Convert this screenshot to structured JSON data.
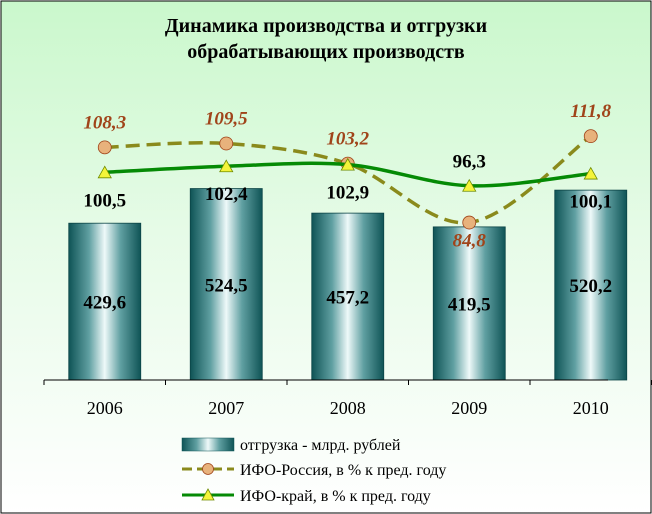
{
  "chart_data": {
    "title_lines": [
      "Динамика производства и отгрузки",
      "обрабатывающих производств"
    ],
    "categories": [
      "2006",
      "2007",
      "2008",
      "2009",
      "2010"
    ],
    "series": [
      {
        "name": "отгрузка - млрд. рублей",
        "type": "bar",
        "values": [
          429.6,
          524.5,
          457.2,
          419.5,
          520.2
        ],
        "labels": [
          "429,6",
          "524,5",
          "457,2",
          "419,5",
          "520,2"
        ]
      },
      {
        "name": "ИФО-Россия, в % к пред. году",
        "type": "line",
        "style": "dashed",
        "marker": "circle",
        "values": [
          108.3,
          109.5,
          103.2,
          84.8,
          111.8
        ],
        "labels": [
          "108,3",
          "109,5",
          "103,2",
          "84,8",
          "111,8"
        ]
      },
      {
        "name": "ИФО-край, в % к пред. году",
        "type": "line",
        "style": "solid",
        "marker": "triangle",
        "values": [
          100.5,
          102.4,
          102.9,
          96.3,
          100.1
        ],
        "labels": [
          "100,5",
          "102,4",
          "102,9",
          "96,3",
          "100,1"
        ]
      }
    ],
    "colors": {
      "background_top": "#caf8cc",
      "background_bottom": "#ffffff",
      "bar_dark": "#0f5456",
      "bar_light": "#eef9f9",
      "russia_line": "#8a8a1c",
      "russia_marker": "#e8b27c",
      "russia_label": "#a0441a",
      "krai_line": "#058a05",
      "krai_marker": "#f4f43a",
      "text": "#000000"
    }
  }
}
